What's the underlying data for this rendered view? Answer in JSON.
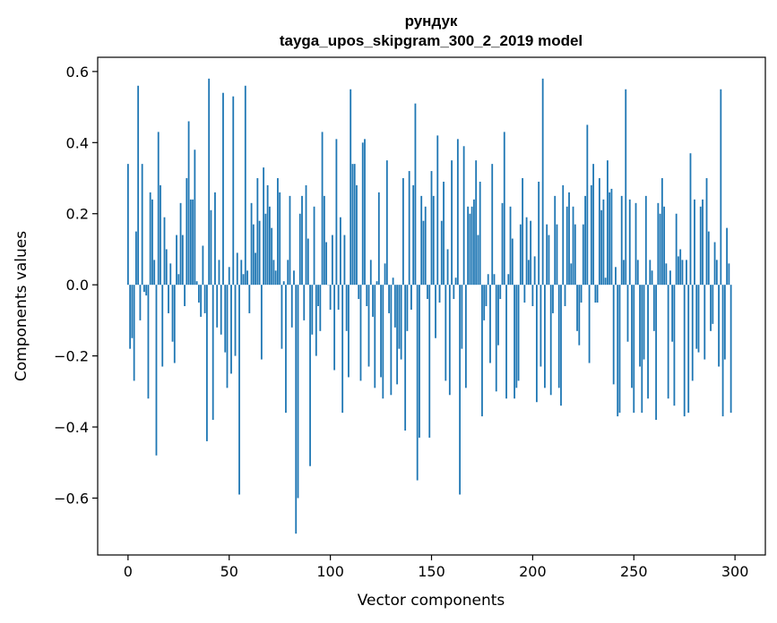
{
  "chart_data": {
    "type": "bar",
    "title_line1": "рундук",
    "title_line2": "tayga_upos_skipgram_300_2_2019 model",
    "xlabel": "Vector components",
    "ylabel": "Components values",
    "xlim": [
      -15,
      315
    ],
    "ylim": [
      -0.76,
      0.64
    ],
    "x_ticks": [
      0,
      50,
      100,
      150,
      200,
      250,
      300
    ],
    "x_tick_labels": [
      "0",
      "50",
      "100",
      "150",
      "200",
      "250",
      "300"
    ],
    "y_ticks": [
      -0.6,
      -0.4,
      -0.2,
      0.0,
      0.2,
      0.4,
      0.6
    ],
    "y_tick_labels": [
      "−0.6",
      "−0.4",
      "−0.2",
      "0.0",
      "0.2",
      "0.4",
      "0.6"
    ],
    "bar_color": "#1f77b4",
    "values": [
      0.34,
      -0.18,
      -0.15,
      -0.27,
      0.15,
      0.56,
      -0.1,
      0.34,
      -0.02,
      -0.03,
      -0.32,
      0.26,
      0.24,
      0.07,
      -0.48,
      0.43,
      0.28,
      -0.23,
      0.19,
      0.1,
      -0.08,
      0.06,
      -0.16,
      -0.22,
      0.14,
      0.03,
      0.23,
      0.14,
      -0.06,
      0.3,
      0.46,
      0.24,
      0.24,
      0.38,
      0.01,
      -0.05,
      -0.09,
      0.11,
      -0.08,
      -0.44,
      0.58,
      0.21,
      -0.38,
      0.26,
      -0.12,
      0.07,
      -0.14,
      0.54,
      -0.19,
      -0.29,
      0.05,
      -0.25,
      0.53,
      -0.2,
      0.09,
      -0.59,
      0.07,
      0.03,
      0.56,
      0.04,
      -0.08,
      0.23,
      0.17,
      0.09,
      0.3,
      0.18,
      -0.21,
      0.33,
      0.2,
      0.28,
      0.22,
      0.16,
      0.07,
      0.04,
      0.3,
      0.26,
      -0.18,
      0.01,
      -0.36,
      0.07,
      0.25,
      -0.12,
      0.04,
      -0.7,
      -0.6,
      0.2,
      0.25,
      -0.1,
      0.28,
      0.13,
      -0.51,
      -0.14,
      0.22,
      -0.2,
      -0.06,
      -0.13,
      0.43,
      0.25,
      0.12,
      0.0,
      -0.07,
      0.14,
      -0.24,
      0.41,
      -0.07,
      0.19,
      -0.36,
      0.14,
      -0.13,
      -0.26,
      0.55,
      0.34,
      0.34,
      0.28,
      -0.04,
      -0.27,
      0.4,
      0.41,
      -0.06,
      -0.23,
      0.07,
      -0.09,
      -0.29,
      0.01,
      0.26,
      -0.26,
      -0.32,
      0.06,
      0.35,
      -0.08,
      -0.31,
      0.02,
      -0.12,
      -0.28,
      -0.18,
      -0.21,
      0.3,
      -0.41,
      -0.13,
      0.32,
      -0.07,
      0.28,
      0.51,
      -0.55,
      -0.43,
      0.25,
      0.18,
      0.22,
      -0.04,
      -0.43,
      0.32,
      0.25,
      -0.15,
      0.42,
      -0.05,
      0.18,
      0.29,
      -0.27,
      0.1,
      -0.31,
      0.35,
      -0.04,
      0.02,
      0.41,
      -0.59,
      -0.18,
      0.39,
      -0.29,
      0.22,
      0.2,
      0.22,
      0.24,
      0.35,
      0.14,
      0.29,
      -0.37,
      -0.1,
      -0.06,
      0.03,
      -0.22,
      0.34,
      0.03,
      -0.3,
      -0.17,
      -0.04,
      0.23,
      0.43,
      -0.32,
      0.03,
      0.22,
      0.13,
      -0.32,
      -0.29,
      -0.27,
      0.17,
      0.3,
      -0.05,
      0.19,
      0.07,
      0.18,
      -0.06,
      0.08,
      -0.33,
      0.29,
      -0.23,
      0.58,
      -0.29,
      0.17,
      0.14,
      -0.31,
      -0.08,
      0.25,
      0.17,
      -0.29,
      -0.34,
      0.28,
      -0.06,
      0.22,
      0.26,
      0.06,
      0.22,
      0.17,
      -0.13,
      -0.17,
      -0.05,
      0.17,
      0.25,
      0.45,
      -0.22,
      0.28,
      0.34,
      -0.05,
      -0.05,
      0.3,
      0.21,
      0.24,
      0.02,
      0.35,
      0.26,
      0.27,
      -0.28,
      0.05,
      -0.37,
      -0.36,
      0.25,
      0.07,
      0.55,
      -0.16,
      0.24,
      -0.29,
      -0.36,
      0.23,
      0.07,
      -0.23,
      -0.36,
      -0.21,
      0.25,
      -0.32,
      0.07,
      0.04,
      -0.13,
      -0.38,
      0.23,
      0.2,
      0.3,
      0.22,
      0.06,
      -0.32,
      0.04,
      -0.16,
      -0.34,
      0.2,
      0.08,
      0.1,
      0.07,
      -0.37,
      0.07,
      -0.36,
      0.37,
      -0.27,
      0.24,
      -0.18,
      -0.19,
      0.22,
      0.24,
      -0.21,
      0.3,
      0.15,
      -0.13,
      -0.11,
      0.12,
      0.07,
      -0.23,
      0.55,
      -0.37,
      -0.21,
      0.16,
      0.06,
      -0.36
    ]
  }
}
